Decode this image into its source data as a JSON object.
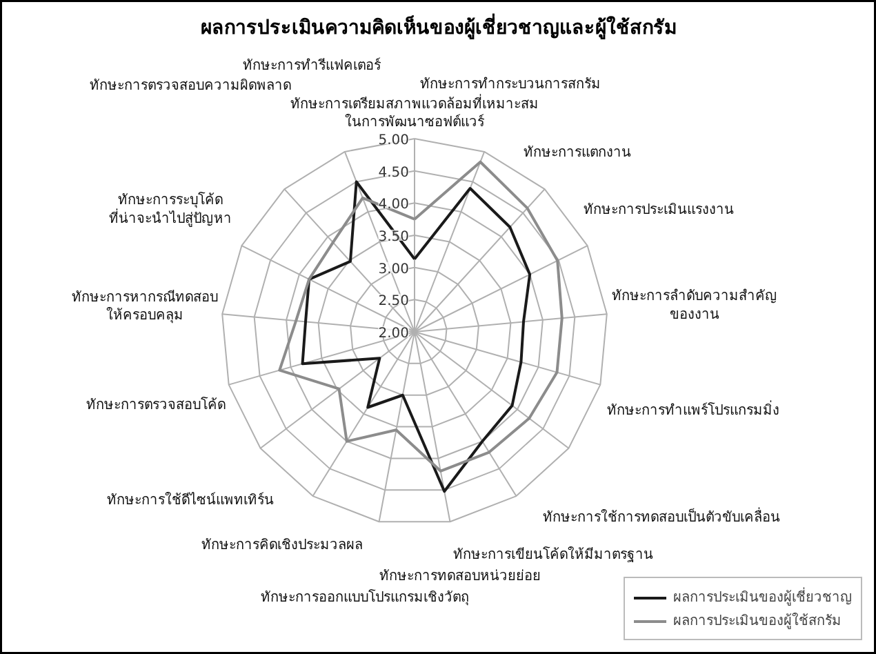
{
  "chart_data": {
    "type": "radar",
    "title": "ผลการประเมินความคิดเห็นของผู้เชี่ยวชาญและผู้ใช้สกรัม",
    "categories": [
      "ทักษะการเตรียมสภาพแวดล้อมที่เหมาะสม\nในการพัฒนาซอฟต์แวร์",
      "ทักษะการทำกระบวนการสกรัม",
      "ทักษะการแตกงาน",
      "ทักษะการประเมินแรงงาน",
      "ทักษะการลำดับความสำคัญ\nของงาน",
      "ทักษะการทำแพร์โปรแกรมมิ่ง",
      "ทักษะการใช้การทดสอบเป็นตัวขับเคลื่อน",
      "ทักษะการเขียนโค้ดให้มีมาตรฐาน",
      "ทักษะการทดสอบหน่วยย่อย",
      "ทักษะการออกแบบโปรแกรมเชิงวัตถุ",
      "ทักษะการคิดเชิงประมวลผล",
      "ทักษะการใช้ดีไซน์แพทเทิร์น",
      "ทักษะการตรวจสอบโค้ด",
      "ทักษะการหากรณีทดสอบ\nให้ครอบคลุม",
      "ทักษะการระบุโค้ด\nที่น่าจะนำไปสู่ปัญหา",
      "ทักษะการตรวจสอบความผิดพลาด",
      "ทักษะการทำรีแฟคเตอร์"
    ],
    "series": [
      {
        "name": "ผลการประเมินของผู้เชี่ยวชาญ",
        "color": "#1a1a1a",
        "values": [
          3.13,
          4.39,
          4.2,
          4.0,
          3.7,
          3.72,
          3.9,
          4.0,
          4.52,
          3.0,
          3.38,
          2.68,
          3.81,
          3.7,
          3.83,
          3.48,
          4.5
        ]
      },
      {
        "name": "ผลการประเมินของผู้ใช้สกรัม",
        "color": "#8c8c8c",
        "values": [
          3.75,
          4.83,
          4.6,
          4.48,
          4.3,
          4.3,
          4.23,
          4.2,
          4.2,
          3.55,
          4.0,
          3.47,
          4.18,
          3.85,
          3.83,
          3.88,
          4.23
        ]
      }
    ],
    "ylim": [
      2,
      5
    ],
    "yticks": [
      {
        "value": 2,
        "label": "2.00"
      },
      {
        "value": 2.5,
        "label": "2.50"
      },
      {
        "value": 3,
        "label": "3.00"
      },
      {
        "value": 3.5,
        "label": "3.50"
      },
      {
        "value": 4,
        "label": "4.00"
      },
      {
        "value": 4.5,
        "label": "4.50"
      },
      {
        "value": 5,
        "label": "5.00"
      }
    ],
    "grid": true,
    "legend": "bottom right",
    "marker": "none",
    "line_style": "solid"
  }
}
